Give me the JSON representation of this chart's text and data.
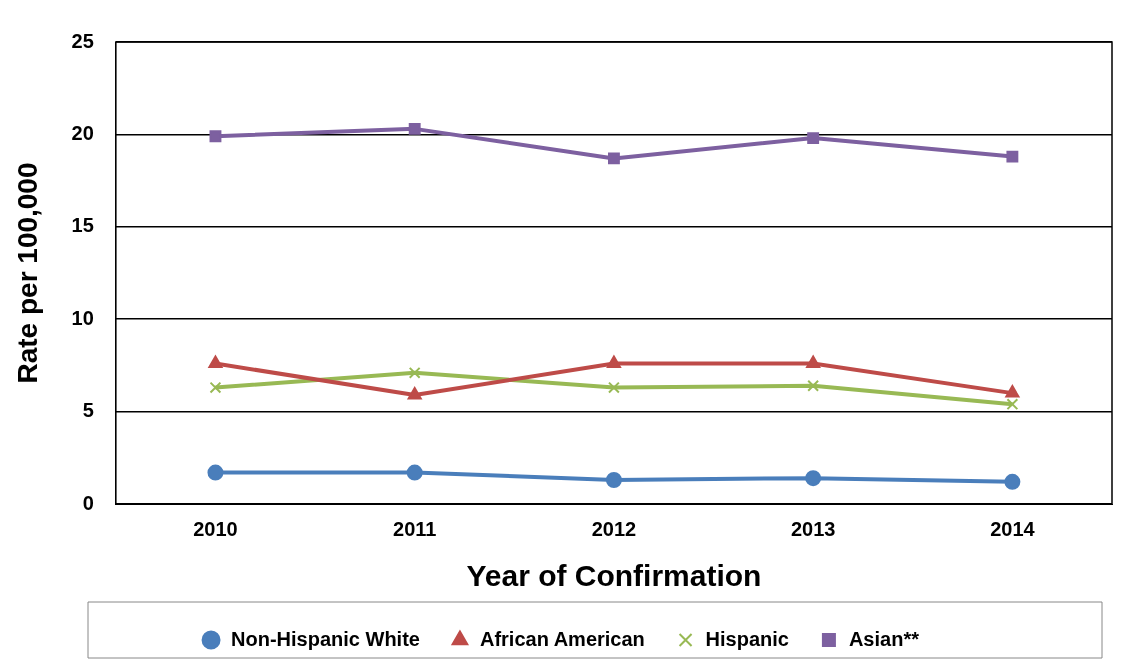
{
  "chart_data": {
    "type": "line",
    "xlabel": "Year of Confirmation",
    "ylabel": "Rate per 100,000",
    "categories": [
      "2010",
      "2011",
      "2012",
      "2013",
      "2014"
    ],
    "series": [
      {
        "name": "Non-Hispanic White",
        "color": "#4a7ebb",
        "marker": "circle",
        "values": [
          1.7,
          1.7,
          1.3,
          1.4,
          1.2
        ]
      },
      {
        "name": "African American",
        "color": "#be4b48",
        "marker": "triangle",
        "values": [
          7.6,
          5.9,
          7.6,
          7.6,
          6.0
        ]
      },
      {
        "name": "Hispanic",
        "color": "#98b954",
        "marker": "cross",
        "values": [
          6.3,
          7.1,
          6.3,
          6.4,
          5.4
        ]
      },
      {
        "name": "Asian**",
        "color": "#7d60a0",
        "marker": "square",
        "values": [
          19.9,
          20.3,
          18.7,
          19.8,
          18.8
        ]
      }
    ],
    "ylim": [
      0,
      25
    ],
    "yticks": [
      0,
      5,
      10,
      15,
      20,
      25
    ],
    "grid": "y",
    "legend": "bottom"
  }
}
